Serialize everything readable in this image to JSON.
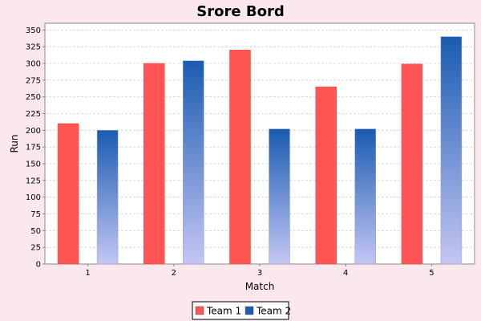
{
  "chart_data": {
    "type": "bar",
    "title": "Srore Bord",
    "xlabel": "Match",
    "ylabel": "Run",
    "categories": [
      "1",
      "2",
      "3",
      "4",
      "5"
    ],
    "series": [
      {
        "name": "Team 1",
        "values": [
          210,
          300,
          320,
          265,
          299
        ],
        "color": "#ff5555"
      },
      {
        "name": "Team 2",
        "values": [
          200,
          304,
          202,
          202,
          340
        ],
        "color": "#1a5cb0",
        "gradient_end": "#c4c6f4"
      }
    ],
    "ylim": [
      0,
      360
    ],
    "yticks": [
      0,
      25,
      50,
      75,
      100,
      125,
      150,
      175,
      200,
      225,
      250,
      275,
      300,
      325,
      350
    ],
    "grid": true,
    "legend_position": "bottom"
  }
}
